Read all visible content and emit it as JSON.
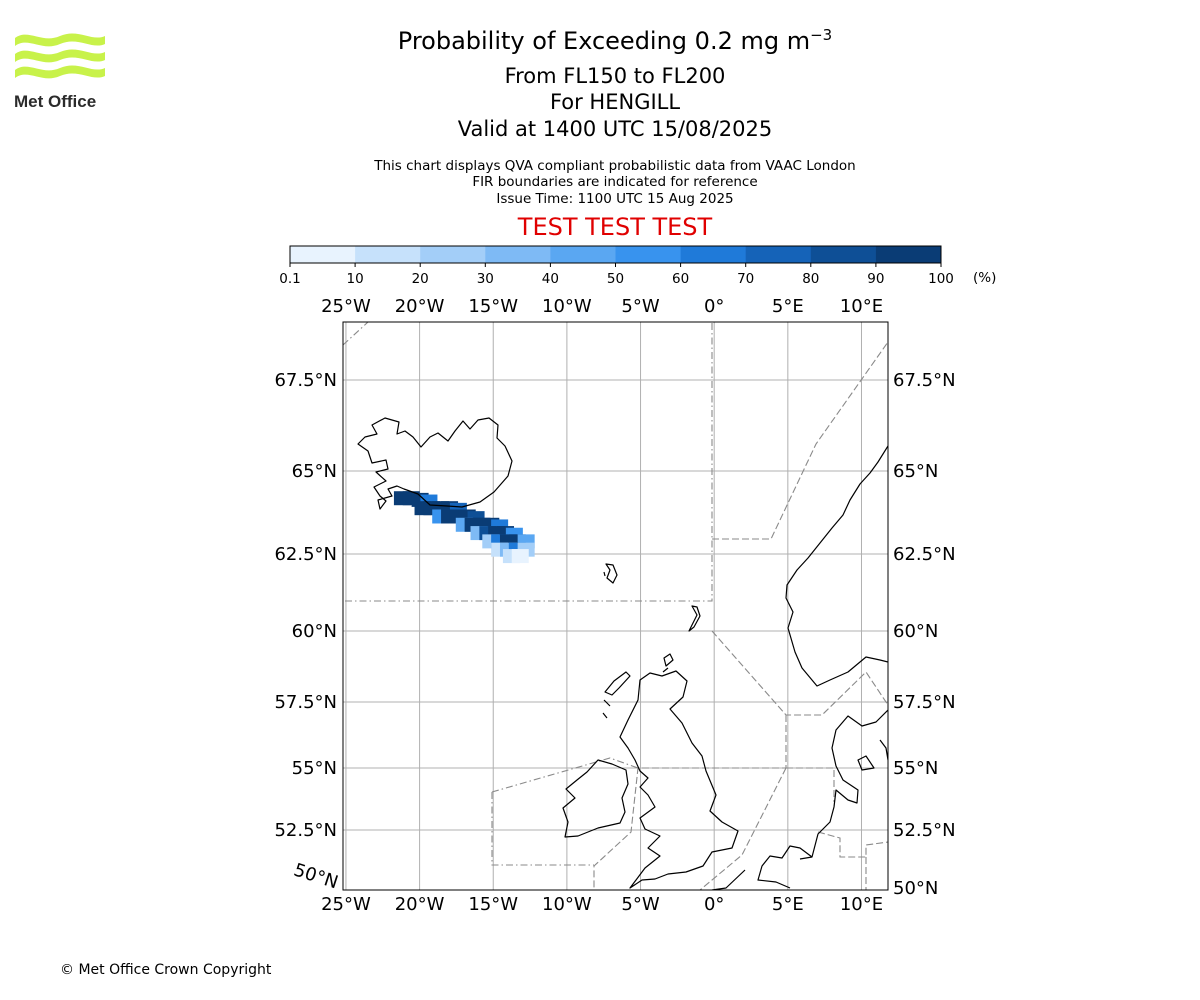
{
  "logo": {
    "text": "Met Office",
    "colors": {
      "wave": "#c8f24a",
      "text": "#2b2b2b"
    }
  },
  "header": {
    "title_prefix": "Probability of Exceeding 0.2 mg m",
    "title_superscript": "−3",
    "level_range": "From FL150 to FL200",
    "volcano": "For HENGILL",
    "valid_time": "Valid at 1400 UTC 15/08/2025",
    "info_lines": [
      "This chart displays QVA compliant probabilistic data from VAAC London",
      "FIR boundaries are indicated for reference",
      "Issue Time: 1100 UTC 15 Aug 2025"
    ],
    "test_banner": "TEST TEST TEST",
    "test_color": "#e00000"
  },
  "colorbar": {
    "ticks": [
      "0.1",
      "10",
      "20",
      "30",
      "40",
      "50",
      "60",
      "70",
      "80",
      "90",
      "100"
    ],
    "unit": "(%)",
    "colors": [
      "#e8f3fe",
      "#c6e1fb",
      "#a3cef8",
      "#7ebaf5",
      "#5aa7f2",
      "#3893ee",
      "#1f7ad9",
      "#1563b8",
      "#0e4f96",
      "#0a3c75",
      "#082b55"
    ]
  },
  "map": {
    "lon_labels": [
      "25°W",
      "20°W",
      "15°W",
      "10°W",
      "5°W",
      "0°",
      "5°E",
      "10°E"
    ],
    "lat_labels": [
      "50°N",
      "52.5°N",
      "55°N",
      "57.5°N",
      "60°N",
      "62.5°N",
      "65°N",
      "67.5°N"
    ],
    "lon_values": [
      -25,
      -20,
      -15,
      -10,
      -5,
      0,
      5,
      10
    ],
    "lat_values": [
      50,
      52.5,
      55,
      57.5,
      60,
      62.5,
      65,
      67.5
    ],
    "lon_range": [
      -25.2,
      11.8
    ],
    "lat_range": [
      50,
      69
    ],
    "ash_cloud": [
      {
        "lon": -21.2,
        "lat": 64.15,
        "prob": 100
      },
      {
        "lon": -20.6,
        "lat": 64.15,
        "prob": 95
      },
      {
        "lon": -20.0,
        "lat": 64.1,
        "prob": 90
      },
      {
        "lon": -19.4,
        "lat": 64.05,
        "prob": 60
      },
      {
        "lon": -19.8,
        "lat": 63.85,
        "prob": 95
      },
      {
        "lon": -19.2,
        "lat": 63.85,
        "prob": 90
      },
      {
        "lon": -18.6,
        "lat": 63.85,
        "prob": 100
      },
      {
        "lon": -18.0,
        "lat": 63.85,
        "prob": 100
      },
      {
        "lon": -17.4,
        "lat": 63.8,
        "prob": 75
      },
      {
        "lon": -18.6,
        "lat": 63.6,
        "prob": 55
      },
      {
        "lon": -18.0,
        "lat": 63.6,
        "prob": 90
      },
      {
        "lon": -17.4,
        "lat": 63.6,
        "prob": 100
      },
      {
        "lon": -16.8,
        "lat": 63.6,
        "prob": 100
      },
      {
        "lon": -16.2,
        "lat": 63.55,
        "prob": 85
      },
      {
        "lon": -17.0,
        "lat": 63.35,
        "prob": 40
      },
      {
        "lon": -16.4,
        "lat": 63.35,
        "prob": 90
      },
      {
        "lon": -15.8,
        "lat": 63.35,
        "prob": 100
      },
      {
        "lon": -15.2,
        "lat": 63.35,
        "prob": 95
      },
      {
        "lon": -14.6,
        "lat": 63.3,
        "prob": 60
      },
      {
        "lon": -16.0,
        "lat": 63.1,
        "prob": 30
      },
      {
        "lon": -15.4,
        "lat": 63.1,
        "prob": 80
      },
      {
        "lon": -14.8,
        "lat": 63.1,
        "prob": 100
      },
      {
        "lon": -14.2,
        "lat": 63.1,
        "prob": 90
      },
      {
        "lon": -13.6,
        "lat": 63.05,
        "prob": 50
      },
      {
        "lon": -15.2,
        "lat": 62.85,
        "prob": 25
      },
      {
        "lon": -14.6,
        "lat": 62.85,
        "prob": 60
      },
      {
        "lon": -14.0,
        "lat": 62.85,
        "prob": 100
      },
      {
        "lon": -13.4,
        "lat": 62.85,
        "prob": 90
      },
      {
        "lon": -12.8,
        "lat": 62.85,
        "prob": 40
      },
      {
        "lon": -14.6,
        "lat": 62.6,
        "prob": 15
      },
      {
        "lon": -14.0,
        "lat": 62.6,
        "prob": 35
      },
      {
        "lon": -13.4,
        "lat": 62.6,
        "prob": 60
      },
      {
        "lon": -12.8,
        "lat": 62.6,
        "prob": 25
      },
      {
        "lon": -13.8,
        "lat": 62.4,
        "prob": 10
      },
      {
        "lon": -13.2,
        "lat": 62.4,
        "prob": 5
      }
    ]
  },
  "footer": {
    "copyright": "© Met Office Crown Copyright"
  }
}
